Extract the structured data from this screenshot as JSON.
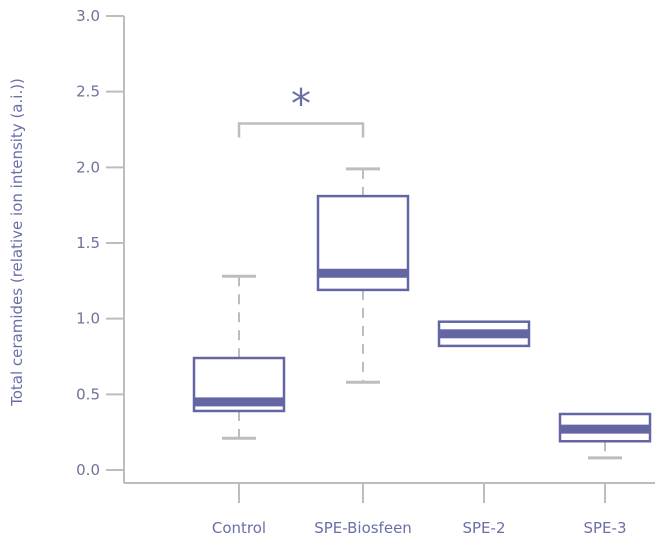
{
  "chart_data": {
    "type": "box",
    "ylabel": "Total ceramides (relative ion intensity (a.i.))",
    "xlabel": "",
    "ylim": [
      0,
      3.0
    ],
    "yticks": [
      "0.0",
      "0.5",
      "1.0",
      "1.5",
      "2.0",
      "2.5",
      "3.0"
    ],
    "categories": [
      "Control",
      "SPE-Biosfeen",
      "SPE-2",
      "SPE-3"
    ],
    "boxes": [
      {
        "min": 0.21,
        "q1": 0.39,
        "median": 0.45,
        "q3": 0.74,
        "max": 1.28
      },
      {
        "min": 0.58,
        "q1": 1.19,
        "median": 1.3,
        "q3": 1.81,
        "max": 1.99
      },
      {
        "min": 0.82,
        "q1": 0.82,
        "median": 0.9,
        "q3": 0.98,
        "max": 0.98
      },
      {
        "min": 0.08,
        "q1": 0.19,
        "median": 0.27,
        "q3": 0.37,
        "max": 0.37
      }
    ],
    "significance": {
      "between": [
        "Control",
        "SPE-Biosfeen"
      ],
      "y": 2.29,
      "label": "*"
    },
    "grid": false,
    "colors": {
      "box": "#6366a3",
      "whisker": "#bdbdbd",
      "axis": "#bdbdbd",
      "text": "#6b6fa8"
    }
  }
}
